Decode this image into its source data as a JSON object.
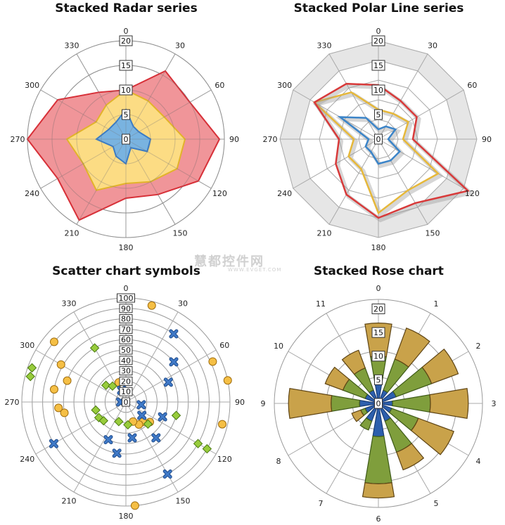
{
  "watermark": {
    "text": "慧都控件网",
    "sub": "WWW.EVGET.COM"
  },
  "chart_data": [
    {
      "type": "radar",
      "title": "Stacked Radar series",
      "angle_labels": [
        "0",
        "30",
        "60",
        "90",
        "120",
        "150",
        "180",
        "210",
        "240",
        "270",
        "300",
        "330"
      ],
      "radial_labels": [
        "0",
        "5",
        "10",
        "15",
        "20"
      ],
      "rmax": 20,
      "series": [
        {
          "values": [
            6,
            3,
            3,
            5,
            5,
            2,
            5,
            4,
            3,
            6,
            4,
            4
          ],
          "color": "#6aaeea",
          "stroke": "#3b7cc4"
        },
        {
          "values": [
            4,
            6,
            6,
            7,
            7,
            8,
            4,
            8,
            7,
            6,
            3,
            4
          ],
          "color": "#fde382",
          "stroke": "#e2b32a"
        },
        {
          "values": [
            0,
            7,
            6,
            7,
            5,
            3,
            3,
            7,
            6,
            8,
            9,
            3
          ],
          "color": "#ee8a8e",
          "stroke": "#d73038"
        }
      ]
    },
    {
      "type": "polar-line",
      "title": "Stacked Polar Line series",
      "angle_labels": [
        "0",
        "30",
        "60",
        "90",
        "120",
        "150",
        "180",
        "210",
        "240",
        "270",
        "300",
        "330"
      ],
      "radial_labels": [
        "0",
        "5",
        "10",
        "15",
        "20"
      ],
      "rmax": 20,
      "series": [
        {
          "values": [
            2,
            3,
            4,
            2,
            5,
            5,
            5,
            3,
            3,
            2,
            9,
            5
          ],
          "color": "#3b84c8"
        },
        {
          "values": [
            4,
            3,
            3,
            3,
            9,
            7,
            10,
            4,
            4,
            3,
            6,
            6
          ],
          "color": "#e6b83a"
        },
        {
          "values": [
            5,
            3,
            2,
            2,
            7,
            3,
            1,
            6,
            3,
            3,
            0,
            2
          ],
          "color": "#d83a3a"
        }
      ]
    },
    {
      "type": "scatter",
      "title": "Scatter chart symbols",
      "angle_labels": [
        "0",
        "30",
        "60",
        "90",
        "120",
        "150",
        "180",
        "210",
        "240",
        "270",
        "300",
        "330"
      ],
      "radial_labels": [
        "0",
        "10",
        "20",
        "30",
        "40",
        "50",
        "60",
        "70",
        "80",
        "90",
        "100"
      ],
      "rmax": 100,
      "series": [
        {
          "symbol": "circle",
          "color": "#f5bf45",
          "stroke": "#a06e10",
          "points": [
            [
              15,
              96
            ],
            [
              103,
              95
            ],
            [
              78,
              100
            ],
            [
              65,
              92
            ],
            [
              130,
              30
            ],
            [
              140,
              25
            ],
            [
              150,
              25
            ],
            [
              160,
              20
            ],
            [
              175,
              100
            ],
            [
              260,
              60
            ],
            [
              265,
              65
            ],
            [
              280,
              70
            ],
            [
              290,
              60
            ],
            [
              300,
              72
            ],
            [
              310,
              90
            ],
            [
              340,
              20
            ]
          ]
        },
        {
          "symbol": "diamond",
          "color": "#98cc3c",
          "stroke": "#4a7a10",
          "points": [
            [
              330,
              60
            ],
            [
              290,
              96
            ],
            [
              285,
              95
            ],
            [
              255,
              30
            ],
            [
              240,
              30
            ],
            [
              230,
              28
            ],
            [
              200,
              20
            ],
            [
              175,
              22
            ],
            [
              135,
              30
            ],
            [
              105,
              50
            ],
            [
              120,
              80
            ],
            [
              120,
              90
            ],
            [
              310,
              25
            ],
            [
              320,
              20
            ]
          ]
        },
        {
          "symbol": "x",
          "color": "#3f79c7",
          "stroke": "#1f4b8a",
          "points": [
            [
              35,
              80
            ],
            [
              50,
              60
            ],
            [
              65,
              45
            ],
            [
              112,
              38
            ],
            [
              140,
              45
            ],
            [
              150,
              80
            ],
            [
              190,
              50
            ],
            [
              205,
              40
            ],
            [
              240,
              80
            ],
            [
              170,
              35
            ],
            [
              130,
              20
            ],
            [
              100,
              15
            ],
            [
              270,
              5
            ],
            [
              340,
              12
            ]
          ]
        }
      ]
    },
    {
      "type": "rose",
      "title": "Stacked Rose chart",
      "angle_labels": [
        "0",
        "1",
        "2",
        "3",
        "4",
        "5",
        "6",
        "7",
        "8",
        "9",
        "10",
        "11"
      ],
      "radial_labels": [
        "0",
        "5",
        "10",
        "15",
        "20"
      ],
      "rmax": 22,
      "series": [
        {
          "color": "#2d5fad",
          "stroke": "#1a3d75",
          "values": [
            5,
            3,
            4,
            3,
            3,
            4,
            7,
            4,
            3,
            4,
            3,
            3
          ]
        },
        {
          "color": "#7f9e3c",
          "stroke": "#3e5a18",
          "values": [
            5,
            7,
            8,
            8,
            6,
            7,
            10,
            2,
            1,
            6,
            5,
            5
          ]
        },
        {
          "color": "#c9a24a",
          "stroke": "#5e4414",
          "values": [
            7,
            7,
            6,
            8,
            8,
            4,
            3,
            0,
            2,
            9,
            4,
            4
          ]
        }
      ]
    }
  ]
}
